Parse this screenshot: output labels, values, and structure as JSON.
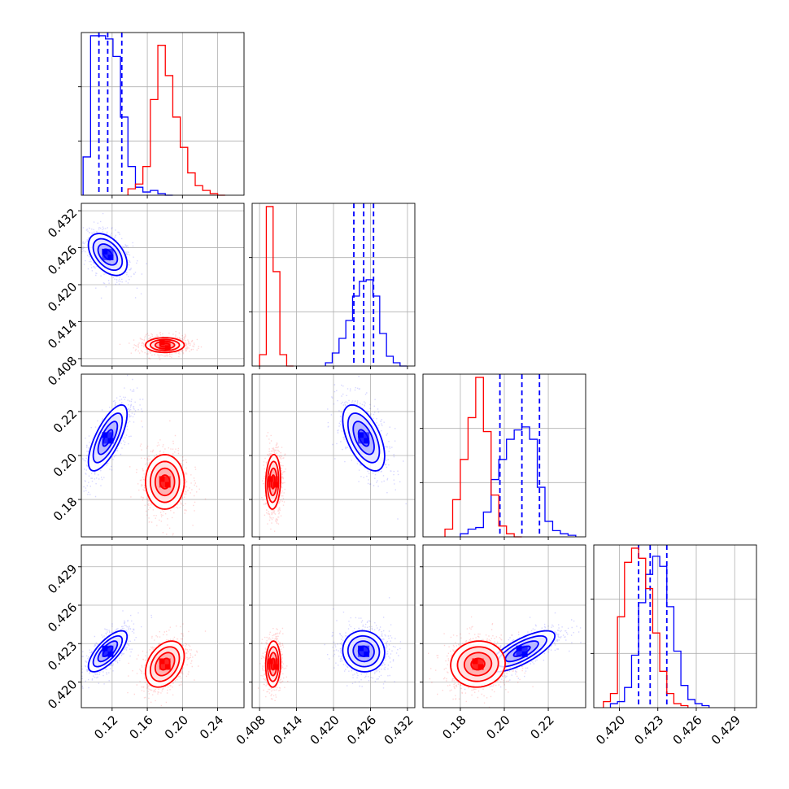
{
  "chart_data": {
    "type": "corner",
    "n_params": 4,
    "grid": true,
    "colors": {
      "blue": "#0000ff",
      "red": "#ff0000",
      "grid": "#b0b0b0"
    },
    "axes": [
      {
        "index": 0,
        "range": [
          0.085,
          0.27
        ],
        "ticks": [
          0.12,
          0.16,
          0.2,
          0.24
        ],
        "tick_labels": [
          "0.12",
          "0.16",
          "0.20",
          "0.24"
        ]
      },
      {
        "index": 1,
        "range": [
          0.4068,
          0.4332
        ],
        "ticks": [
          0.408,
          0.414,
          0.42,
          0.426,
          0.432
        ],
        "tick_labels": [
          "0.408",
          "0.414",
          "0.420",
          "0.426",
          "0.432"
        ]
      },
      {
        "index": 2,
        "range": [
          0.163,
          0.237
        ],
        "ticks": [
          0.18,
          0.2,
          0.22
        ],
        "tick_labels": [
          "0.18",
          "0.20",
          "0.22"
        ]
      },
      {
        "index": 3,
        "range": [
          0.418,
          0.4307
        ],
        "ticks": [
          0.42,
          0.423,
          0.426,
          0.429
        ],
        "tick_labels": [
          "0.420",
          "0.423",
          "0.426",
          "0.429"
        ]
      }
    ],
    "series": [
      {
        "color": "#0000ff",
        "quantile_lines": [
          [
            0.105,
            0.115,
            0.131
          ],
          [
            0.4233,
            0.4249,
            0.4265
          ],
          [
            0.198,
            0.208,
            0.216
          ],
          [
            0.4215,
            0.4224,
            0.4237
          ]
        ],
        "marginals": [
          {
            "bin_width": 0.0085,
            "bins": [
              [
                0.087,
                0.24
              ],
              [
                0.0955,
                1.0
              ],
              [
                0.104,
                1.0
              ],
              [
                0.1125,
                0.98
              ],
              [
                0.121,
                0.87
              ],
              [
                0.1295,
                0.49
              ],
              [
                0.138,
                0.18
              ],
              [
                0.1465,
                0.05
              ],
              [
                0.155,
                0.02
              ],
              [
                0.1635,
                0.03
              ],
              [
                0.172,
                0.01
              ],
              [
                0.1805,
                0.0
              ]
            ]
          },
          {
            "bin_width": 0.0011,
            "bins": [
              [
                0.4187,
                0.02
              ],
              [
                0.4198,
                0.08
              ],
              [
                0.4209,
                0.17
              ],
              [
                0.422,
                0.28
              ],
              [
                0.4231,
                0.43
              ],
              [
                0.4242,
                0.52
              ],
              [
                0.4253,
                0.53
              ],
              [
                0.4264,
                0.43
              ],
              [
                0.4275,
                0.2
              ],
              [
                0.4286,
                0.06
              ],
              [
                0.4297,
                0.02
              ],
              [
                0.4308,
                0.0
              ]
            ]
          },
          {
            "bin_width": 0.0035,
            "bins": [
              [
                0.18,
                0.02
              ],
              [
                0.1835,
                0.05
              ],
              [
                0.187,
                0.06
              ],
              [
                0.1905,
                0.16
              ],
              [
                0.194,
                0.37
              ],
              [
                0.1975,
                0.5
              ],
              [
                0.201,
                0.63
              ],
              [
                0.2045,
                0.69
              ],
              [
                0.208,
                0.71
              ],
              [
                0.2115,
                0.63
              ],
              [
                0.215,
                0.32
              ],
              [
                0.2185,
                0.1
              ],
              [
                0.222,
                0.04
              ],
              [
                0.2255,
                0.02
              ],
              [
                0.229,
                0.01
              ]
            ]
          },
          {
            "bin_width": 0.00055,
            "bins": [
              [
                0.4193,
                0.02
              ],
              [
                0.41985,
                0.03
              ],
              [
                0.4204,
                0.1
              ],
              [
                0.42095,
                0.26
              ],
              [
                0.4215,
                0.52
              ],
              [
                0.42205,
                0.66
              ],
              [
                0.4226,
                0.75
              ],
              [
                0.42315,
                0.7
              ],
              [
                0.4237,
                0.5
              ],
              [
                0.42425,
                0.28
              ],
              [
                0.4248,
                0.11
              ],
              [
                0.42535,
                0.04
              ],
              [
                0.4259,
                0.02
              ],
              [
                0.42645,
                0.01
              ]
            ]
          }
        ],
        "blobs_2d": [
          {
            "x": 0,
            "y": 1,
            "mean": [
              0.115,
              0.4249
            ],
            "sd": [
              0.011,
              0.0017
            ],
            "rho": -0.45
          },
          {
            "x": 0,
            "y": 2,
            "mean": [
              0.115,
              0.208
            ],
            "sd": [
              0.011,
              0.0075
            ],
            "rho": 0.72
          },
          {
            "x": 1,
            "y": 2,
            "mean": [
              0.4249,
              0.208
            ],
            "sd": [
              0.0017,
              0.0075
            ],
            "rho": -0.55
          },
          {
            "x": 0,
            "y": 3,
            "mean": [
              0.115,
              0.4224
            ],
            "sd": [
              0.011,
              0.0008
            ],
            "rho": 0.72
          },
          {
            "x": 1,
            "y": 3,
            "mean": [
              0.4249,
              0.4224
            ],
            "sd": [
              0.0017,
              0.0008
            ],
            "rho": -0.05
          },
          {
            "x": 2,
            "y": 3,
            "mean": [
              0.208,
              0.4224
            ],
            "sd": [
              0.0075,
              0.0008
            ],
            "rho": 0.75
          }
        ]
      },
      {
        "color": "#ff0000",
        "quantile_lines": null,
        "marginals": [
          {
            "bin_width": 0.0085,
            "bins": [
              [
                0.138,
                0.04
              ],
              [
                0.1465,
                0.07
              ],
              [
                0.155,
                0.18
              ],
              [
                0.1635,
                0.6
              ],
              [
                0.172,
                0.94
              ],
              [
                0.1805,
                0.75
              ],
              [
                0.189,
                0.49
              ],
              [
                0.1975,
                0.3
              ],
              [
                0.206,
                0.14
              ],
              [
                0.2145,
                0.06
              ],
              [
                0.223,
                0.03
              ],
              [
                0.2315,
                0.01
              ],
              [
                0.24,
                0.0
              ]
            ]
          },
          {
            "bin_width": 0.0011,
            "bins": [
              [
                0.408,
                0.07
              ],
              [
                0.4091,
                0.98
              ],
              [
                0.4102,
                0.58
              ],
              [
                0.4113,
                0.07
              ],
              [
                0.4124,
                0.0
              ]
            ]
          },
          {
            "bin_width": 0.0035,
            "bins": [
              [
                0.173,
                0.05
              ],
              [
                0.1765,
                0.24
              ],
              [
                0.18,
                0.5
              ],
              [
                0.1835,
                0.77
              ],
              [
                0.187,
                1.03
              ],
              [
                0.1905,
                0.68
              ],
              [
                0.194,
                0.27
              ],
              [
                0.1975,
                0.07
              ],
              [
                0.201,
                0.02
              ],
              [
                0.2045,
                0.0
              ]
            ]
          },
          {
            "bin_width": 0.00055,
            "bins": [
              [
                0.41875,
                0.03
              ],
              [
                0.4193,
                0.07
              ],
              [
                0.41985,
                0.45
              ],
              [
                0.4204,
                0.72
              ],
              [
                0.42095,
                0.79
              ],
              [
                0.4215,
                0.74
              ],
              [
                0.42205,
                0.59
              ],
              [
                0.4226,
                0.37
              ],
              [
                0.42315,
                0.18
              ],
              [
                0.4237,
                0.07
              ],
              [
                0.42425,
                0.02
              ],
              [
                0.4248,
                0.01
              ]
            ]
          }
        ],
        "blobs_2d": [
          {
            "x": 0,
            "y": 1,
            "mean": [
              0.18,
              0.4102
            ],
            "sd": [
              0.011,
              0.0006
            ],
            "rho": 0.0
          },
          {
            "x": 0,
            "y": 2,
            "mean": [
              0.18,
              0.188
            ],
            "sd": [
              0.011,
              0.0062
            ],
            "rho": 0.0
          },
          {
            "x": 1,
            "y": 2,
            "mean": [
              0.4102,
              0.188
            ],
            "sd": [
              0.0006,
              0.0062
            ],
            "rho": 0.1
          },
          {
            "x": 0,
            "y": 3,
            "mean": [
              0.18,
              0.4214
            ],
            "sd": [
              0.011,
              0.0009
            ],
            "rho": 0.35
          },
          {
            "x": 1,
            "y": 3,
            "mean": [
              0.4102,
              0.4214
            ],
            "sd": [
              0.0006,
              0.0009
            ],
            "rho": 0.05
          },
          {
            "x": 2,
            "y": 3,
            "mean": [
              0.188,
              0.4214
            ],
            "sd": [
              0.0062,
              0.0009
            ],
            "rho": 0.05
          }
        ]
      }
    ]
  }
}
